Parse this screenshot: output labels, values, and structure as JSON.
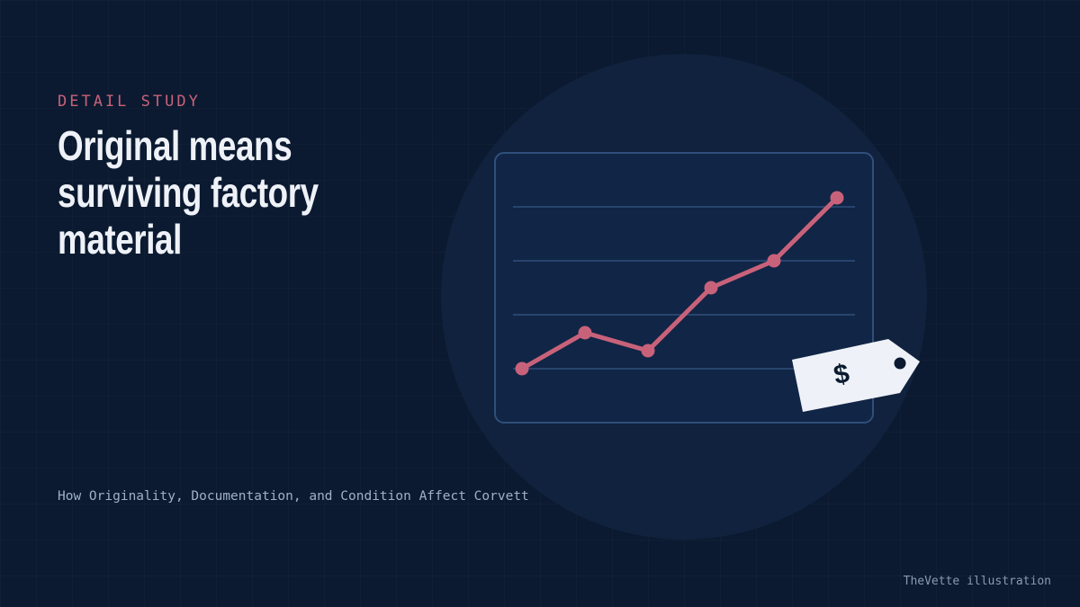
{
  "eyebrow": "DETAIL STUDY",
  "title_lines": [
    "Original means",
    "surviving factory",
    "material"
  ],
  "subtitle": "How Originality, Documentation, and Condition Affect Corvett",
  "tag_symbol": "$",
  "credit": "TheVette illustration"
}
